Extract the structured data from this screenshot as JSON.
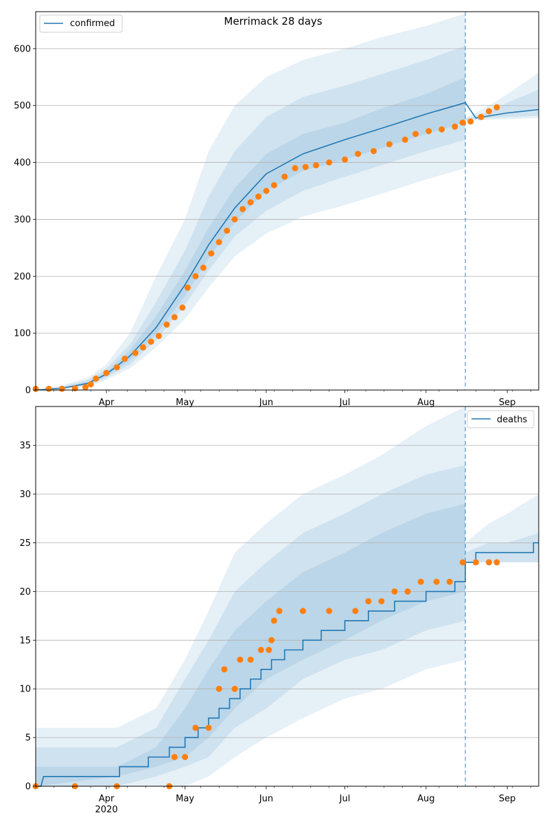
{
  "chart_data": [
    {
      "type": "line",
      "title": "Merrimack 28 days",
      "xlabel": "",
      "ylabel": "",
      "x_range": [
        "2020-03-05",
        "2020-09-13"
      ],
      "ylim": [
        0,
        665
      ],
      "yticks": [
        0,
        100,
        200,
        300,
        400,
        500,
        600
      ],
      "xticks": [
        {
          "date": "2020-04-01",
          "label": "Apr",
          "sublabel": ""
        },
        {
          "date": "2020-05-01",
          "label": "May",
          "sublabel": ""
        },
        {
          "date": "2020-06-01",
          "label": "Jun",
          "sublabel": ""
        },
        {
          "date": "2020-07-01",
          "label": "Jul",
          "sublabel": ""
        },
        {
          "date": "2020-08-01",
          "label": "Aug",
          "sublabel": ""
        },
        {
          "date": "2020-09-01",
          "label": "Sep",
          "sublabel": ""
        }
      ],
      "grid": "horizontal",
      "legend": {
        "position": "upper-left",
        "entries": [
          "confirmed"
        ]
      },
      "forecast_start": "2020-08-16",
      "colors": {
        "model": "#1f77b4",
        "observed": "#ff7f0e",
        "band": "#1f77b4"
      },
      "model_median": {
        "x": [
          "2020-03-05",
          "2020-03-15",
          "2020-03-25",
          "2020-04-01",
          "2020-04-10",
          "2020-04-20",
          "2020-05-01",
          "2020-05-10",
          "2020-05-20",
          "2020-06-01",
          "2020-06-15",
          "2020-07-01",
          "2020-07-15",
          "2020-08-01",
          "2020-08-16",
          "2020-08-20",
          "2020-09-01",
          "2020-09-13"
        ],
        "y": [
          0,
          3,
          12,
          28,
          60,
          110,
          185,
          255,
          320,
          380,
          415,
          440,
          460,
          485,
          505,
          478,
          487,
          493
        ]
      },
      "bands": [
        {
          "x": [
            "2020-03-05",
            "2020-03-15",
            "2020-03-25",
            "2020-04-01",
            "2020-04-10",
            "2020-04-20",
            "2020-05-01",
            "2020-05-10",
            "2020-05-20",
            "2020-06-01",
            "2020-06-15",
            "2020-07-01",
            "2020-07-15",
            "2020-08-01",
            "2020-08-16"
          ],
          "lower": [
            0,
            1,
            6,
            18,
            38,
            75,
            125,
            180,
            235,
            275,
            305,
            325,
            345,
            370,
            390
          ],
          "upper": [
            0,
            8,
            22,
            45,
            100,
            200,
            300,
            420,
            500,
            550,
            580,
            600,
            620,
            640,
            662
          ]
        },
        {
          "x": [
            "2020-03-05",
            "2020-03-15",
            "2020-03-25",
            "2020-04-01",
            "2020-04-10",
            "2020-04-20",
            "2020-05-01",
            "2020-05-10",
            "2020-05-20",
            "2020-06-01",
            "2020-06-15",
            "2020-07-01",
            "2020-07-15",
            "2020-08-01",
            "2020-08-16"
          ],
          "lower": [
            0,
            2,
            8,
            22,
            45,
            88,
            150,
            210,
            270,
            315,
            350,
            375,
            395,
            420,
            440
          ],
          "upper": [
            0,
            6,
            18,
            38,
            80,
            155,
            245,
            340,
            420,
            480,
            515,
            535,
            555,
            580,
            605
          ]
        },
        {
          "x": [
            "2020-03-05",
            "2020-03-15",
            "2020-03-25",
            "2020-04-01",
            "2020-04-10",
            "2020-04-20",
            "2020-05-01",
            "2020-05-10",
            "2020-05-20",
            "2020-06-01",
            "2020-06-15",
            "2020-07-01",
            "2020-07-15",
            "2020-08-01",
            "2020-08-16"
          ],
          "lower": [
            0,
            2,
            10,
            25,
            52,
            98,
            165,
            232,
            295,
            350,
            385,
            405,
            425,
            450,
            470
          ],
          "upper": [
            0,
            4,
            15,
            32,
            70,
            130,
            210,
            285,
            355,
            415,
            450,
            470,
            495,
            520,
            550
          ]
        }
      ],
      "forecast_bands": [
        {
          "x": [
            "2020-08-16",
            "2020-08-25",
            "2020-09-01",
            "2020-09-13"
          ],
          "lower": [
            472,
            475,
            476,
            478
          ],
          "upper": [
            478,
            500,
            520,
            558
          ]
        },
        {
          "x": [
            "2020-08-16",
            "2020-08-25",
            "2020-09-01",
            "2020-09-13"
          ],
          "lower": [
            474,
            478,
            480,
            482
          ],
          "upper": [
            476,
            490,
            505,
            528
          ]
        }
      ],
      "observed": {
        "x": [
          "2020-03-05",
          "2020-03-10",
          "2020-03-15",
          "2020-03-20",
          "2020-03-24",
          "2020-03-26",
          "2020-03-28",
          "2020-04-01",
          "2020-04-05",
          "2020-04-08",
          "2020-04-12",
          "2020-04-15",
          "2020-04-18",
          "2020-04-21",
          "2020-04-24",
          "2020-04-27",
          "2020-04-30",
          "2020-05-02",
          "2020-05-05",
          "2020-05-08",
          "2020-05-11",
          "2020-05-14",
          "2020-05-17",
          "2020-05-20",
          "2020-05-23",
          "2020-05-26",
          "2020-05-29",
          "2020-06-01",
          "2020-06-04",
          "2020-06-08",
          "2020-06-12",
          "2020-06-16",
          "2020-06-20",
          "2020-06-25",
          "2020-07-01",
          "2020-07-06",
          "2020-07-12",
          "2020-07-18",
          "2020-07-24",
          "2020-07-28",
          "2020-08-02",
          "2020-08-07",
          "2020-08-12",
          "2020-08-15",
          "2020-08-18",
          "2020-08-22",
          "2020-08-25",
          "2020-08-28"
        ],
        "y": [
          2,
          2,
          2,
          3,
          5,
          10,
          20,
          30,
          40,
          55,
          65,
          75,
          85,
          95,
          115,
          128,
          145,
          180,
          200,
          215,
          240,
          260,
          280,
          300,
          318,
          330,
          340,
          350,
          360,
          375,
          390,
          392,
          395,
          400,
          405,
          415,
          420,
          432,
          440,
          450,
          455,
          458,
          463,
          470,
          472,
          480,
          490,
          497
        ]
      }
    },
    {
      "type": "line",
      "title": "",
      "xlabel": "",
      "ylabel": "",
      "x_range": [
        "2020-03-05",
        "2020-09-13"
      ],
      "ylim": [
        0,
        39
      ],
      "yticks": [
        0,
        5,
        10,
        15,
        20,
        25,
        30,
        35
      ],
      "xticks": [
        {
          "date": "2020-04-01",
          "label": "Apr",
          "sublabel": "2020"
        },
        {
          "date": "2020-05-01",
          "label": "May",
          "sublabel": ""
        },
        {
          "date": "2020-06-01",
          "label": "Jun",
          "sublabel": ""
        },
        {
          "date": "2020-07-01",
          "label": "Jul",
          "sublabel": ""
        },
        {
          "date": "2020-08-01",
          "label": "Aug",
          "sublabel": ""
        },
        {
          "date": "2020-09-01",
          "label": "Sep",
          "sublabel": ""
        }
      ],
      "grid": "horizontal",
      "legend": {
        "position": "upper-right",
        "entries": [
          "deaths"
        ]
      },
      "forecast_start": "2020-08-16",
      "colors": {
        "model": "#1f77b4",
        "observed": "#ff7f0e",
        "band": "#1f77b4"
      },
      "model_median": {
        "x": [
          "2020-03-05",
          "2020-03-07",
          "2020-03-08",
          "2020-04-06",
          "2020-04-06",
          "2020-04-17",
          "2020-04-17",
          "2020-04-25",
          "2020-04-25",
          "2020-05-01",
          "2020-05-01",
          "2020-05-06",
          "2020-05-06",
          "2020-05-10",
          "2020-05-10",
          "2020-05-14",
          "2020-05-14",
          "2020-05-18",
          "2020-05-18",
          "2020-05-22",
          "2020-05-22",
          "2020-05-26",
          "2020-05-26",
          "2020-05-30",
          "2020-05-30",
          "2020-06-03",
          "2020-06-03",
          "2020-06-08",
          "2020-06-08",
          "2020-06-15",
          "2020-06-15",
          "2020-06-22",
          "2020-06-22",
          "2020-07-01",
          "2020-07-01",
          "2020-07-10",
          "2020-07-10",
          "2020-07-20",
          "2020-07-20",
          "2020-08-01",
          "2020-08-01",
          "2020-08-12",
          "2020-08-12",
          "2020-08-16",
          "2020-08-16",
          "2020-08-20",
          "2020-08-20",
          "2020-09-11",
          "2020-09-11",
          "2020-09-13"
        ],
        "y": [
          0,
          0,
          1,
          1,
          2,
          2,
          3,
          3,
          4,
          4,
          5,
          5,
          6,
          6,
          7,
          7,
          8,
          8,
          9,
          9,
          10,
          10,
          11,
          11,
          12,
          12,
          13,
          13,
          14,
          14,
          15,
          15,
          16,
          16,
          17,
          17,
          18,
          18,
          19,
          19,
          20,
          20,
          21,
          21,
          23,
          23,
          24,
          24,
          25,
          25
        ]
      },
      "bands": [
        {
          "x": [
            "2020-03-05",
            "2020-04-05",
            "2020-04-20",
            "2020-05-01",
            "2020-05-10",
            "2020-05-20",
            "2020-06-01",
            "2020-06-15",
            "2020-07-01",
            "2020-07-15",
            "2020-08-01",
            "2020-08-16"
          ],
          "lower": [
            0,
            0,
            0,
            0,
            1,
            3,
            5,
            7,
            9,
            10,
            12,
            13
          ],
          "upper": [
            6,
            6,
            8,
            13,
            18,
            24,
            27,
            30,
            32,
            34,
            37,
            39
          ]
        },
        {
          "x": [
            "2020-03-05",
            "2020-04-05",
            "2020-04-20",
            "2020-05-01",
            "2020-05-10",
            "2020-05-20",
            "2020-06-01",
            "2020-06-15",
            "2020-07-01",
            "2020-07-15",
            "2020-08-01",
            "2020-08-16"
          ],
          "lower": [
            0,
            0,
            1,
            2,
            3,
            6,
            8,
            11,
            13,
            14,
            16,
            17
          ],
          "upper": [
            4,
            4,
            6,
            11,
            15,
            20,
            23,
            26,
            28,
            30,
            32,
            33
          ]
        },
        {
          "x": [
            "2020-03-05",
            "2020-04-05",
            "2020-04-20",
            "2020-05-01",
            "2020-05-10",
            "2020-05-20",
            "2020-06-01",
            "2020-06-15",
            "2020-07-01",
            "2020-07-15",
            "2020-08-01",
            "2020-08-16"
          ],
          "lower": [
            0,
            1,
            2,
            3,
            5,
            8,
            11,
            13,
            15,
            17,
            19,
            20
          ],
          "upper": [
            2,
            2,
            4,
            8,
            12,
            16,
            19,
            22,
            24,
            26,
            28,
            29
          ]
        }
      ],
      "forecast_bands": [
        {
          "x": [
            "2020-08-16",
            "2020-08-25",
            "2020-09-01",
            "2020-09-13"
          ],
          "lower": [
            23,
            23,
            23,
            23
          ],
          "upper": [
            25,
            27,
            28,
            30
          ]
        },
        {
          "x": [
            "2020-08-16",
            "2020-08-25",
            "2020-09-01",
            "2020-09-13"
          ],
          "lower": [
            23,
            23,
            23,
            23
          ],
          "upper": [
            24,
            25,
            25,
            26
          ]
        }
      ],
      "observed": {
        "x": [
          "2020-03-05",
          "2020-03-20",
          "2020-04-05",
          "2020-04-25",
          "2020-04-27",
          "2020-05-01",
          "2020-05-05",
          "2020-05-10",
          "2020-05-14",
          "2020-05-16",
          "2020-05-20",
          "2020-05-22",
          "2020-05-26",
          "2020-05-30",
          "2020-06-02",
          "2020-06-03",
          "2020-06-04",
          "2020-06-06",
          "2020-06-15",
          "2020-06-25",
          "2020-07-05",
          "2020-07-10",
          "2020-07-15",
          "2020-07-20",
          "2020-07-25",
          "2020-07-30",
          "2020-08-05",
          "2020-08-10",
          "2020-08-15",
          "2020-08-20",
          "2020-08-25",
          "2020-08-28"
        ],
        "y": [
          0,
          0,
          0,
          0,
          3,
          3,
          6,
          6,
          10,
          12,
          10,
          13,
          13,
          14,
          14,
          15,
          17,
          18,
          18,
          18,
          18,
          19,
          19,
          20,
          20,
          21,
          21,
          21,
          23,
          23,
          23,
          23
        ]
      }
    }
  ]
}
